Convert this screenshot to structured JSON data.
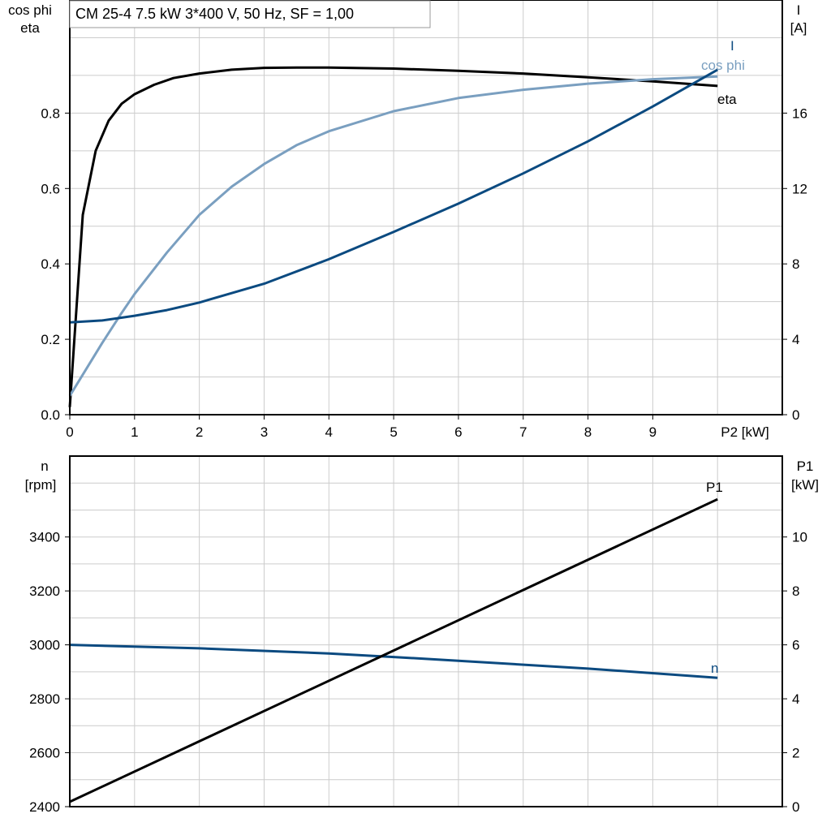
{
  "title": "CM 25-4   7.5 kW   3*400 V, 50 Hz, SF = 1,00",
  "colors": {
    "eta": "#000000",
    "cos_phi": "#7a9fc0",
    "I": "#0b4a80",
    "n": "#0b4a80",
    "P1": "#000000",
    "grid": "#cccccc"
  },
  "chart_data": [
    {
      "type": "line",
      "title": "CM 25-4   7.5 kW   3*400 V, 50 Hz, SF = 1,00",
      "xlabel": "P2 [kW]",
      "ylabel_left": [
        "cos phi",
        "eta"
      ],
      "ylabel_right": [
        "I",
        "[A]"
      ],
      "xlim": [
        0,
        11
      ],
      "ylim_left": [
        0,
        1.1
      ],
      "ylim_right": [
        0,
        22
      ],
      "x_ticks": [
        "0",
        "1",
        "2",
        "3",
        "4",
        "5",
        "6",
        "7",
        "8",
        "9"
      ],
      "y_ticks_left": [
        "0.0",
        "0.2",
        "0.4",
        "0.6",
        "0.8"
      ],
      "y_ticks_right": [
        "0",
        "4",
        "8",
        "12",
        "16"
      ],
      "grid": true,
      "series": [
        {
          "name": "eta",
          "axis": "left",
          "x": [
            0,
            0.2,
            0.4,
            0.6,
            0.8,
            1,
            1.3,
            1.6,
            2,
            2.5,
            3,
            3.5,
            4,
            5,
            6,
            7,
            8,
            9,
            10
          ],
          "y": [
            0.02,
            0.53,
            0.7,
            0.78,
            0.825,
            0.85,
            0.875,
            0.893,
            0.905,
            0.915,
            0.92,
            0.921,
            0.921,
            0.918,
            0.912,
            0.905,
            0.895,
            0.884,
            0.872
          ]
        },
        {
          "name": "cos phi",
          "axis": "left",
          "x": [
            0,
            0.5,
            0.8,
            1,
            1.5,
            2,
            2.5,
            3,
            3.5,
            4,
            5,
            6,
            7,
            8,
            9,
            10
          ],
          "y": [
            0.05,
            0.19,
            0.27,
            0.32,
            0.43,
            0.53,
            0.605,
            0.665,
            0.715,
            0.752,
            0.805,
            0.84,
            0.862,
            0.878,
            0.89,
            0.897
          ]
        },
        {
          "name": "I",
          "axis": "right",
          "x": [
            0,
            0.5,
            1,
            1.5,
            2,
            3,
            4,
            5,
            6,
            7,
            8,
            9,
            10
          ],
          "y": [
            4.9,
            5.0,
            5.25,
            5.55,
            5.95,
            6.95,
            8.25,
            9.7,
            11.2,
            12.8,
            14.5,
            16.35,
            18.3
          ]
        }
      ]
    },
    {
      "type": "line",
      "xlim": [
        0,
        11
      ],
      "ylabel_left": [
        "n",
        "[rpm]"
      ],
      "ylabel_right": [
        "P1",
        "[kW]"
      ],
      "ylim_left": [
        2400,
        3700
      ],
      "ylim_right": [
        0,
        13
      ],
      "y_ticks_left": [
        "2400",
        "2600",
        "2800",
        "3000",
        "3200",
        "3400"
      ],
      "y_ticks_right": [
        "0",
        "2",
        "4",
        "6",
        "8",
        "10"
      ],
      "grid": true,
      "series": [
        {
          "name": "n",
          "axis": "left",
          "x": [
            0,
            2,
            4,
            5,
            6,
            8,
            10
          ],
          "y": [
            3000,
            2987,
            2968,
            2955,
            2941,
            2912,
            2878
          ]
        },
        {
          "name": "P1",
          "axis": "right",
          "x": [
            0,
            10
          ],
          "y": [
            0.18,
            11.4
          ]
        }
      ]
    }
  ]
}
